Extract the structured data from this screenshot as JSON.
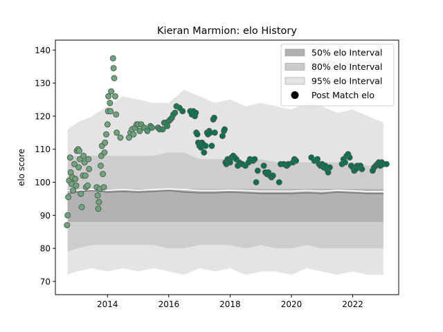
{
  "chart_data": {
    "type": "scatter",
    "title": "Kieran Marmion: elo History",
    "xlabel": "",
    "ylabel": "elo score",
    "xlim": [
      2012.3,
      2023.5
    ],
    "ylim": [
      66,
      143
    ],
    "x_ticks": [
      2014,
      2016,
      2018,
      2020,
      2022
    ],
    "y_ticks": [
      70,
      80,
      90,
      100,
      110,
      120,
      130,
      140
    ],
    "legend_position": "top-right",
    "legend": [
      {
        "label": "50% elo Interval",
        "kind": "band",
        "color": "#b0b0b0"
      },
      {
        "label": "80% elo Interval",
        "kind": "band",
        "color": "#cacaca"
      },
      {
        "label": "95% elo Interval",
        "kind": "band",
        "color": "#e3e3e3"
      },
      {
        "label": "Post Match elo",
        "kind": "marker",
        "color": "#000000"
      }
    ],
    "colors": {
      "band50": "#b2b2b2",
      "band80": "#cdcdcd",
      "band95": "#e4e4e4",
      "median_line": "#7a7a7a",
      "mean_line": "#ffffff",
      "point_fill_old": "#6aa77a",
      "point_fill_new": "#00744a",
      "point_edge": "#5a5a5a"
    },
    "bands": {
      "x": [
        2012.7,
        2013.0,
        2013.5,
        2014.0,
        2014.5,
        2015.0,
        2015.5,
        2016.0,
        2016.5,
        2017.0,
        2017.5,
        2018.0,
        2018.5,
        2019.0,
        2019.5,
        2020.0,
        2020.5,
        2021.0,
        2021.5,
        2022.0,
        2022.5,
        2023.0
      ],
      "p95_hi": [
        116,
        118,
        120,
        123,
        126,
        125,
        124,
        124,
        128,
        126,
        124,
        125,
        123,
        124,
        123,
        122,
        124,
        123,
        121,
        122,
        120,
        118
      ],
      "p80_hi": [
        108,
        108,
        108,
        108,
        108,
        108,
        108,
        109,
        109,
        107,
        107,
        107,
        106,
        107,
        106,
        106,
        106,
        106,
        106,
        106,
        105,
        105
      ],
      "p50_hi": [
        98,
        98,
        98,
        98,
        98,
        98,
        98,
        98,
        98,
        98,
        98,
        98,
        98,
        98,
        98,
        98,
        98,
        98,
        98,
        98,
        98,
        98
      ],
      "p50_lo": [
        88,
        88,
        88,
        88,
        88,
        88,
        88,
        88,
        88,
        88,
        88,
        88,
        88,
        88,
        88,
        88,
        88,
        88,
        88,
        88,
        88,
        88
      ],
      "p80_lo": [
        79,
        80,
        81,
        81,
        81,
        81,
        81,
        80,
        80,
        81,
        81,
        81,
        80,
        81,
        80,
        80,
        81,
        80,
        80,
        80,
        80,
        80
      ],
      "p95_lo": [
        72,
        73,
        74,
        73,
        74,
        73,
        74,
        73,
        72,
        74,
        73,
        74,
        72,
        73,
        73,
        72,
        74,
        73,
        72,
        73,
        72,
        72
      ],
      "median": [
        96.5,
        97,
        97.5,
        97,
        97.2,
        97,
        97.2,
        97.5,
        97,
        96.8,
        96.8,
        97,
        96.8,
        96.6,
        96.6,
        96.6,
        96.8,
        96.6,
        97,
        96.8,
        96.6,
        96.6
      ],
      "mean": [
        97.5,
        97.6,
        97.8,
        97.6,
        97.8,
        97.6,
        97.8,
        98,
        97.8,
        97.5,
        97.5,
        97.6,
        97.5,
        97.3,
        97.3,
        97.3,
        97.5,
        97.3,
        97.6,
        97.4,
        97.2,
        97.2
      ]
    },
    "series": [
      {
        "name": "Post Match elo",
        "points": [
          [
            2012.68,
            87.0
          ],
          [
            2012.7,
            90.0
          ],
          [
            2012.72,
            95.5
          ],
          [
            2012.75,
            100.5
          ],
          [
            2012.78,
            107.5
          ],
          [
            2012.8,
            103.0
          ],
          [
            2012.83,
            99.5
          ],
          [
            2012.85,
            101.5
          ],
          [
            2012.88,
            97.5
          ],
          [
            2012.92,
            105.5
          ],
          [
            2012.95,
            101.0
          ],
          [
            2012.98,
            99.0
          ],
          [
            2013.0,
            109.5
          ],
          [
            2013.04,
            110.0
          ],
          [
            2013.06,
            104.5
          ],
          [
            2013.08,
            109.5
          ],
          [
            2013.1,
            107.0
          ],
          [
            2013.13,
            96.5
          ],
          [
            2013.16,
            92.5
          ],
          [
            2013.2,
            102.0
          ],
          [
            2013.22,
            108.0
          ],
          [
            2013.25,
            106.0
          ],
          [
            2013.28,
            102.0
          ],
          [
            2013.3,
            98.5
          ],
          [
            2013.35,
            99.0
          ],
          [
            2013.38,
            107.0
          ],
          [
            2013.4,
            104.0
          ],
          [
            2013.65,
            98.5
          ],
          [
            2013.68,
            96.0
          ],
          [
            2013.7,
            92.0
          ],
          [
            2013.72,
            94.0
          ],
          [
            2013.75,
            98.0
          ],
          [
            2013.78,
            105.0
          ],
          [
            2013.8,
            108.0
          ],
          [
            2013.82,
            111.0
          ],
          [
            2013.85,
            102.5
          ],
          [
            2013.88,
            98.5
          ],
          [
            2013.9,
            109.0
          ],
          [
            2013.92,
            112.0
          ],
          [
            2013.96,
            114.5
          ],
          [
            2014.0,
            117.5
          ],
          [
            2014.02,
            121.5
          ],
          [
            2014.03,
            126.0
          ],
          [
            2014.08,
            124.0
          ],
          [
            2014.1,
            121.5
          ],
          [
            2014.12,
            127.5
          ],
          [
            2014.18,
            137.5
          ],
          [
            2014.2,
            134.5
          ],
          [
            2014.22,
            131.5
          ],
          [
            2014.25,
            126.0
          ],
          [
            2014.28,
            120.5
          ],
          [
            2014.3,
            115.0
          ],
          [
            2014.42,
            113.5
          ],
          [
            2014.7,
            113.5
          ],
          [
            2014.75,
            115.0
          ],
          [
            2014.8,
            116.0
          ],
          [
            2014.85,
            114.5
          ],
          [
            2014.9,
            116.5
          ],
          [
            2014.95,
            117.5
          ],
          [
            2015.0,
            117.5
          ],
          [
            2015.05,
            115.5
          ],
          [
            2015.1,
            117.5
          ],
          [
            2015.2,
            116.5
          ],
          [
            2015.3,
            115.5
          ],
          [
            2015.4,
            117.0
          ],
          [
            2015.45,
            116.5
          ],
          [
            2015.65,
            116.5
          ],
          [
            2015.7,
            116.0
          ],
          [
            2015.8,
            116.0
          ],
          [
            2015.85,
            118.0
          ],
          [
            2015.9,
            118.0
          ],
          [
            2015.95,
            117.0
          ],
          [
            2016.0,
            118.5
          ],
          [
            2016.05,
            119.0
          ],
          [
            2016.1,
            119.5
          ],
          [
            2016.15,
            120.5
          ],
          [
            2016.2,
            121.0
          ],
          [
            2016.25,
            123.0
          ],
          [
            2016.35,
            122.5
          ],
          [
            2016.45,
            121.5
          ],
          [
            2016.7,
            121.5
          ],
          [
            2016.75,
            120.5
          ],
          [
            2016.8,
            121.5
          ],
          [
            2016.85,
            120.0
          ],
          [
            2016.88,
            121.0
          ],
          [
            2016.9,
            115.0
          ],
          [
            2016.93,
            114.5
          ],
          [
            2016.96,
            112.0
          ],
          [
            2017.0,
            111.0
          ],
          [
            2017.05,
            110.5
          ],
          [
            2017.08,
            112.0
          ],
          [
            2017.12,
            111.5
          ],
          [
            2017.15,
            109.0
          ],
          [
            2017.2,
            111.0
          ],
          [
            2017.25,
            115.0
          ],
          [
            2017.28,
            114.5
          ],
          [
            2017.32,
            115.5
          ],
          [
            2017.35,
            115.0
          ],
          [
            2017.4,
            111.0
          ],
          [
            2017.45,
            119.0
          ],
          [
            2017.48,
            119.5
          ],
          [
            2017.5,
            115.0
          ],
          [
            2017.75,
            114.0
          ],
          [
            2017.8,
            115.5
          ],
          [
            2017.82,
            116.0
          ],
          [
            2017.85,
            106.0
          ],
          [
            2017.88,
            105.5
          ],
          [
            2017.92,
            107.0
          ],
          [
            2017.96,
            106.0
          ],
          [
            2018.0,
            106.0
          ],
          [
            2018.05,
            107.5
          ],
          [
            2018.1,
            108.0
          ],
          [
            2018.15,
            107.5
          ],
          [
            2018.2,
            107.0
          ],
          [
            2018.25,
            105.0
          ],
          [
            2018.3,
            106.0
          ],
          [
            2018.4,
            105.5
          ],
          [
            2018.5,
            105.0
          ],
          [
            2018.6,
            106.0
          ],
          [
            2018.65,
            107.0
          ],
          [
            2018.75,
            106.5
          ],
          [
            2018.8,
            107.0
          ],
          [
            2018.85,
            100.0
          ],
          [
            2018.9,
            103.5
          ],
          [
            2019.1,
            105.0
          ],
          [
            2019.15,
            103.0
          ],
          [
            2019.2,
            102.5
          ],
          [
            2019.25,
            103.0
          ],
          [
            2019.3,
            102.0
          ],
          [
            2019.35,
            101.5
          ],
          [
            2019.4,
            102.0
          ],
          [
            2019.6,
            100.0
          ],
          [
            2019.65,
            105.5
          ],
          [
            2019.75,
            105.5
          ],
          [
            2019.85,
            105.0
          ],
          [
            2019.9,
            105.5
          ],
          [
            2020.05,
            106.0
          ],
          [
            2020.1,
            107.0
          ],
          [
            2020.15,
            106.5
          ],
          [
            2020.65,
            107.5
          ],
          [
            2020.75,
            106.5
          ],
          [
            2020.85,
            107.0
          ],
          [
            2020.9,
            105.5
          ],
          [
            2020.95,
            105.0
          ],
          [
            2021.0,
            105.5
          ],
          [
            2021.05,
            104.5
          ],
          [
            2021.1,
            105.0
          ],
          [
            2021.15,
            104.0
          ],
          [
            2021.2,
            103.0
          ],
          [
            2021.25,
            104.5
          ],
          [
            2021.65,
            105.5
          ],
          [
            2021.7,
            107.0
          ],
          [
            2021.75,
            106.0
          ],
          [
            2021.8,
            108.0
          ],
          [
            2021.85,
            108.5
          ],
          [
            2021.9,
            107.5
          ],
          [
            2021.95,
            105.0
          ],
          [
            2022.0,
            104.5
          ],
          [
            2022.05,
            103.5
          ],
          [
            2022.1,
            104.0
          ],
          [
            2022.15,
            105.0
          ],
          [
            2022.2,
            104.5
          ],
          [
            2022.25,
            105.0
          ],
          [
            2022.3,
            104.0
          ],
          [
            2022.65,
            103.5
          ],
          [
            2022.7,
            104.5
          ],
          [
            2022.75,
            105.0
          ],
          [
            2022.8,
            105.5
          ],
          [
            2022.85,
            106.0
          ],
          [
            2022.9,
            105.0
          ],
          [
            2022.95,
            106.0
          ],
          [
            2023.0,
            105.5
          ],
          [
            2023.1,
            105.5
          ]
        ]
      }
    ]
  }
}
